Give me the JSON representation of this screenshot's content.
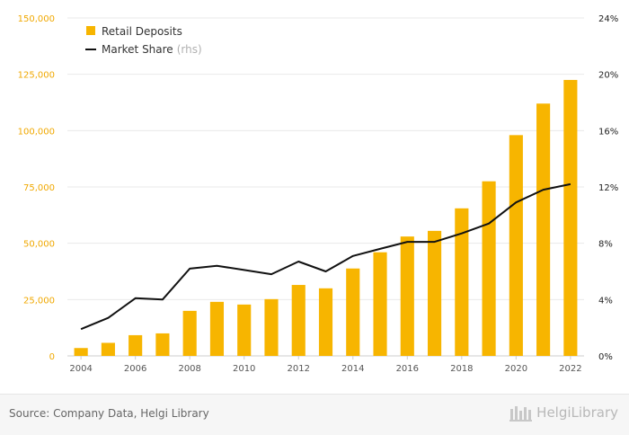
{
  "chart_data": {
    "type": "bar",
    "categories": [
      "2004",
      "2005",
      "2006",
      "2007",
      "2008",
      "2009",
      "2010",
      "2011",
      "2012",
      "2013",
      "2014",
      "2015",
      "2016",
      "2017",
      "2018",
      "2019",
      "2020",
      "2021",
      "2022"
    ],
    "x_tick_labels": [
      "2004",
      "2006",
      "2008",
      "2010",
      "2012",
      "2014",
      "2016",
      "2018",
      "2020",
      "2022"
    ],
    "series": [
      {
        "name": "Retail Deposits",
        "type": "bar",
        "axis": "left",
        "color": "#f7b500",
        "values": [
          3500,
          5800,
          9200,
          10000,
          20000,
          24000,
          22800,
          25200,
          31500,
          30000,
          38800,
          46000,
          53000,
          55500,
          65500,
          77500,
          98000,
          112000,
          122500
        ]
      },
      {
        "name": "Market Share",
        "name_suffix": "(rhs)",
        "type": "line",
        "axis": "right",
        "color": "#111111",
        "values": [
          1.9,
          2.7,
          4.1,
          4.0,
          6.2,
          6.4,
          6.1,
          5.8,
          6.7,
          6.0,
          7.1,
          7.6,
          8.1,
          8.1,
          8.7,
          9.4,
          10.9,
          11.8,
          12.2
        ]
      }
    ],
    "y_left": {
      "min": 0,
      "max": 150000,
      "ticks": [
        0,
        25000,
        50000,
        75000,
        100000,
        125000,
        150000
      ],
      "tick_labels": [
        "0",
        "25,000",
        "50,000",
        "75,000",
        "100,000",
        "125,000",
        "150,000"
      ],
      "color": "#f0a800"
    },
    "y_right": {
      "min": 0,
      "max": 24,
      "ticks": [
        0,
        4,
        8,
        12,
        16,
        20,
        24
      ],
      "tick_labels": [
        "0%",
        "4%",
        "8%",
        "12%",
        "16%",
        "20%",
        "24%"
      ]
    },
    "grid": true,
    "legend_position": "top-left"
  },
  "footer": {
    "source": "Source: Company Data, Helgi Library",
    "brand": "HelgiLibrary"
  }
}
